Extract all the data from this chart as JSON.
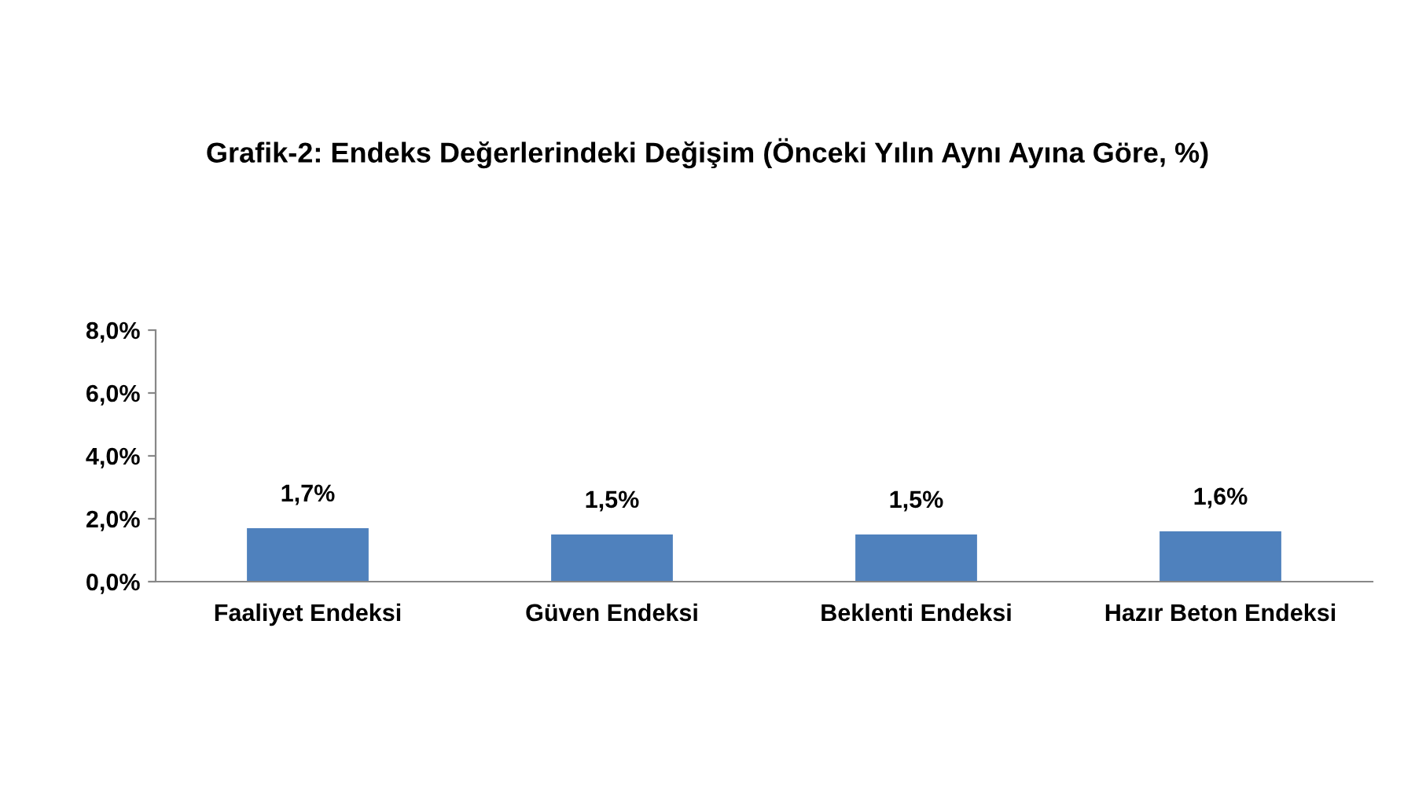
{
  "chart_data": {
    "type": "bar",
    "title": "Grafik-2: Endeks Değerlerindeki Değişim (Önceki Yılın Aynı Ayına Göre, %)",
    "categories": [
      "Faaliyet Endeksi",
      "Güven Endeksi",
      "Beklenti Endeksi",
      "Hazır Beton Endeksi"
    ],
    "values": [
      1.7,
      1.5,
      1.5,
      1.6
    ],
    "value_labels": [
      "1,7%",
      "1,5%",
      "1,5%",
      "1,6%"
    ],
    "color": "#4f81bd",
    "ylim": [
      0,
      8
    ],
    "yticks": [
      {
        "value": 0,
        "label": "0,0%"
      },
      {
        "value": 2,
        "label": "2,0%"
      },
      {
        "value": 4,
        "label": "4,0%"
      },
      {
        "value": 6,
        "label": "6,0%"
      },
      {
        "value": 8,
        "label": "8,0%"
      }
    ],
    "grid": false,
    "legend": false
  }
}
